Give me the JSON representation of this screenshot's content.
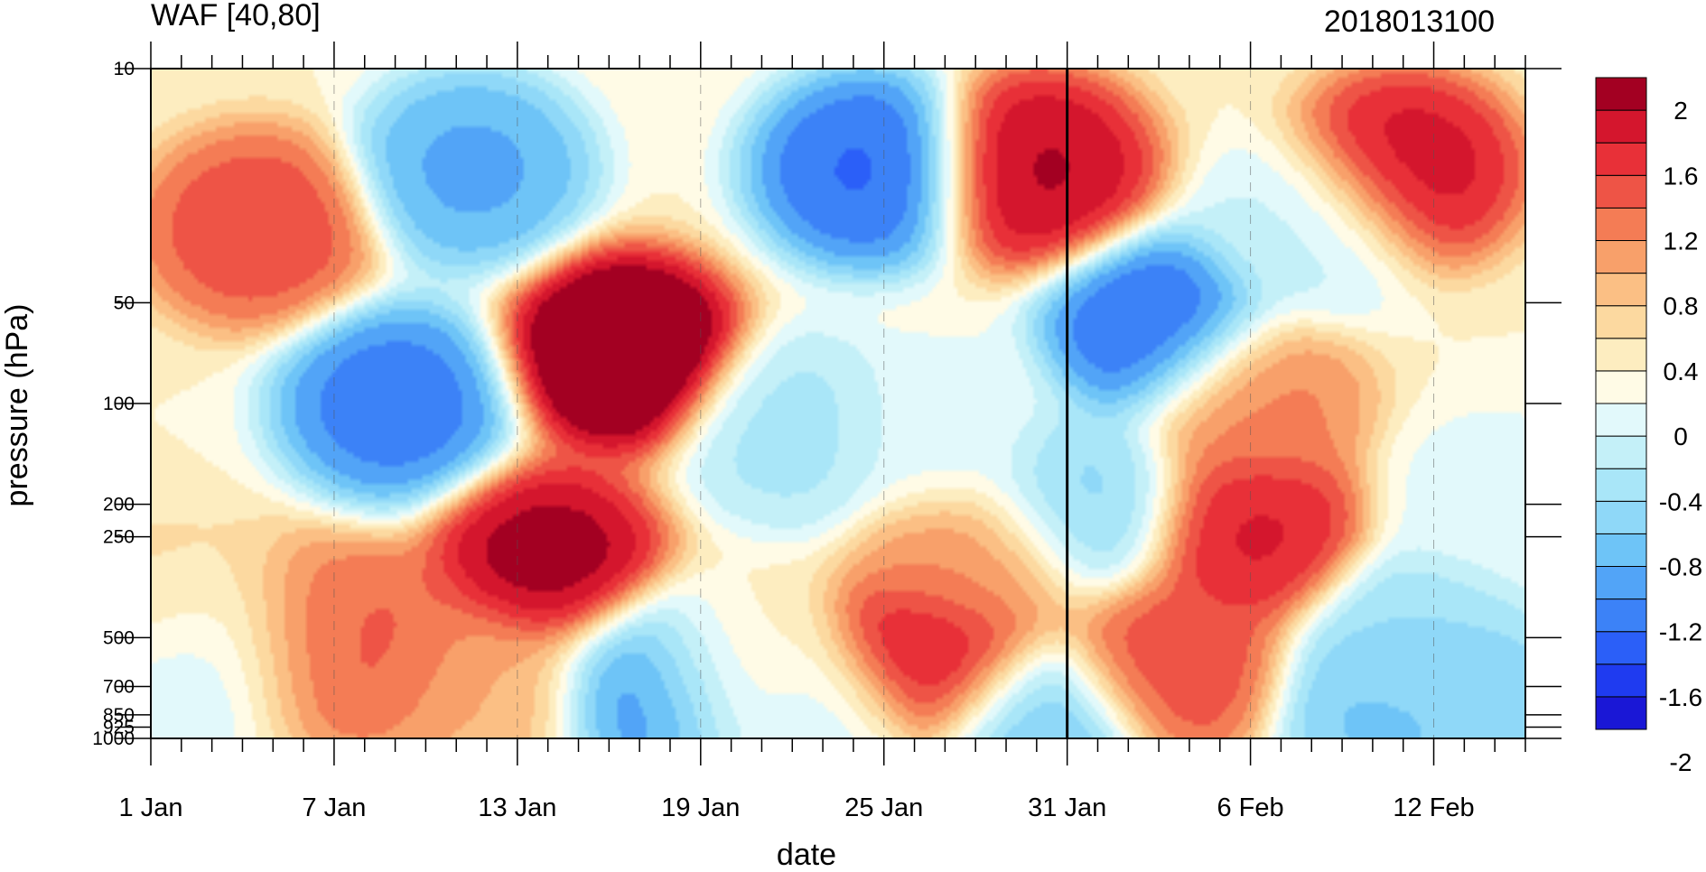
{
  "chart_data": {
    "type": "heatmap",
    "title": "WAF [40,80]",
    "subtitle": "2018013100",
    "xlabel": "date",
    "ylabel": "pressure (hPa)",
    "x_tick_labels": [
      "1 Jan",
      "7 Jan",
      "13 Jan",
      "19 Jan",
      "25 Jan",
      "31 Jan",
      "6 Feb",
      "12 Feb"
    ],
    "y_tick_labels": [
      "10",
      "50",
      "100",
      "200",
      "250",
      "500",
      "700",
      "850",
      "925",
      "1000"
    ],
    "y_tick_values": [
      10,
      50,
      100,
      200,
      250,
      500,
      700,
      850,
      925,
      1000
    ],
    "y_scale": "log",
    "x_range_days": [
      1,
      46
    ],
    "reference_line": "31 Jan",
    "colorbar": {
      "labels": [
        "2",
        "1.6",
        "1.2",
        "0.8",
        "0.4",
        "0",
        "-0.4",
        "-0.8",
        "-1.2",
        "-1.6",
        "-2"
      ],
      "levels": [
        -2.2,
        -2.0,
        -1.8,
        -1.6,
        -1.4,
        -1.2,
        -1.0,
        -0.8,
        -0.6,
        -0.4,
        -0.2,
        0,
        0.2,
        0.4,
        0.6,
        0.8,
        1.0,
        1.2,
        1.4,
        1.6,
        1.8,
        2.0,
        2.2
      ],
      "colors": [
        "#1a17d6",
        "#1f3bf0",
        "#2b5ff8",
        "#3c82f7",
        "#52a4f7",
        "#6ec4f7",
        "#8fd8f8",
        "#a9e6f8",
        "#c4f0f8",
        "#e2f9fb",
        "#fffbe6",
        "#fdedc0",
        "#fcd9a0",
        "#fbbf84",
        "#f8a06a",
        "#f47c55",
        "#ee5446",
        "#e83038",
        "#d4162d",
        "#a30022"
      ]
    },
    "features": [
      {
        "date": 4.5,
        "pressure": 30,
        "value": 1.2
      },
      {
        "date": 9,
        "pressure": 100,
        "value": -1.6
      },
      {
        "date": 11.5,
        "pressure": 20,
        "value": -1.3
      },
      {
        "date": 16.5,
        "pressure": 70,
        "value": 2.2
      },
      {
        "date": 14,
        "pressure": 300,
        "value": 1.8
      },
      {
        "date": 24.5,
        "pressure": 20,
        "value": -1.7
      },
      {
        "date": 30,
        "pressure": 20,
        "value": 1.7
      },
      {
        "date": 34,
        "pressure": 60,
        "value": -1.7
      },
      {
        "date": 42,
        "pressure": 20,
        "value": 1.6
      },
      {
        "date": 17.5,
        "pressure": 700,
        "value": -1.5
      },
      {
        "date": 26.5,
        "pressure": 600,
        "value": 1.6
      },
      {
        "date": 6,
        "pressure": 500,
        "value": 1.0
      },
      {
        "date": 8.5,
        "pressure": 550,
        "value": 1.1
      },
      {
        "date": 31.5,
        "pressure": 200,
        "value": -0.9
      },
      {
        "date": 34.5,
        "pressure": 600,
        "value": 1.2
      },
      {
        "date": 37,
        "pressure": 240,
        "value": 1.5
      },
      {
        "date": 41.5,
        "pressure": 800,
        "value": -1.1
      },
      {
        "date": 44,
        "pressure": 800,
        "value": -1.0
      },
      {
        "date": 39,
        "pressure": 30,
        "value": -0.5
      },
      {
        "date": 22,
        "pressure": 120,
        "value": -0.7
      },
      {
        "date": 20,
        "pressure": 600,
        "value": 0.1
      },
      {
        "date": 30,
        "pressure": 950,
        "value": -1.1
      },
      {
        "date": 23,
        "pressure": 900,
        "value": -0.4
      },
      {
        "date": 37,
        "pressure": 100,
        "value": 0.9
      },
      {
        "date": 3,
        "pressure": 550,
        "value": -0.6
      },
      {
        "date": 2,
        "pressure": 400,
        "value": 0.3
      },
      {
        "date": 42.5,
        "pressure": 500,
        "value": -0.8
      },
      {
        "date": 45,
        "pressure": 200,
        "value": -0.3
      },
      {
        "date": 27,
        "pressure": 120,
        "value": -0.3
      },
      {
        "date": 28,
        "pressure": 300,
        "value": 0.8
      },
      {
        "date": 12,
        "pressure": 700,
        "value": 0.6
      }
    ]
  }
}
